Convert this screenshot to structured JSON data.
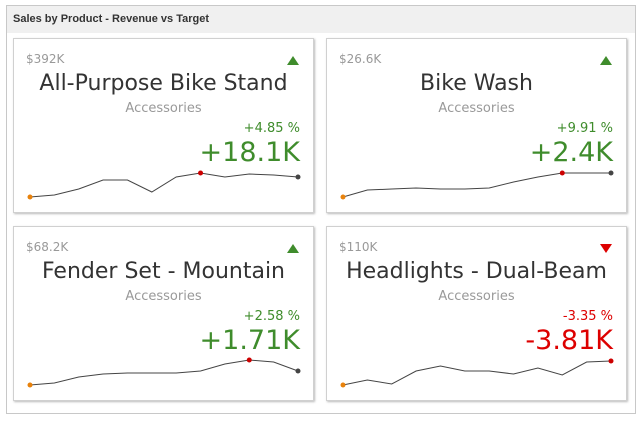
{
  "panel": {
    "title": "Sales by Product - Revenue vs Target"
  },
  "colors": {
    "positive": "#3f8c2c",
    "negative": "#dd0000",
    "line": "#444444",
    "start_marker": "#e8820c",
    "max_marker": "#cc0000",
    "end_marker": "#444444"
  },
  "cards": [
    {
      "value": "$392K",
      "title": "All-Purpose Bike Stand",
      "subtitle": "Accessories",
      "percent": "+4.85 %",
      "delta": "+18.1K",
      "trend": "up",
      "indicator_icon": "triangle-up-icon",
      "sparkline": [
        2,
        4,
        10,
        19,
        19,
        7,
        22,
        26,
        22,
        25,
        24,
        22
      ],
      "max_index": 7
    },
    {
      "value": "$26.6K",
      "title": "Bike Wash",
      "subtitle": "Accessories",
      "percent": "+9.91 %",
      "delta": "+2.4K",
      "trend": "up",
      "indicator_icon": "triangle-up-icon",
      "sparkline": [
        2,
        9,
        10,
        11,
        10,
        10,
        11,
        17,
        22,
        26,
        26,
        26
      ],
      "max_index": 9
    },
    {
      "value": "$68.2K",
      "title": "Fender Set - Mountain",
      "subtitle": "Accessories",
      "percent": "+2.58 %",
      "delta": "+1.71K",
      "trend": "up",
      "indicator_icon": "triangle-up-icon",
      "sparkline": [
        2,
        4,
        10,
        13,
        14,
        14,
        14,
        16,
        23,
        27,
        25,
        16
      ],
      "max_index": 9
    },
    {
      "value": "$110K",
      "title": "Headlights - Dual-Beam",
      "subtitle": "Accessories",
      "percent": "-3.35 %",
      "delta": "-3.81K",
      "trend": "down",
      "indicator_icon": "triangle-down-icon",
      "sparkline": [
        2,
        7,
        3,
        16,
        21,
        16,
        16,
        13,
        19,
        12,
        25,
        26
      ],
      "max_index": 11
    }
  ]
}
